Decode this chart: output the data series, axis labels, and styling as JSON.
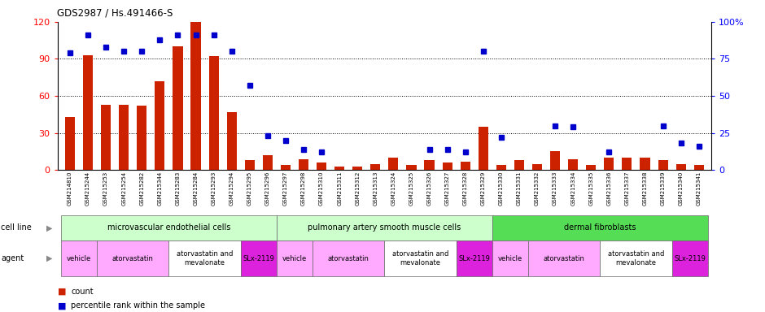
{
  "title": "GDS2987 / Hs.491466-S",
  "samples": [
    "GSM214810",
    "GSM215244",
    "GSM215253",
    "GSM215254",
    "GSM215282",
    "GSM215344",
    "GSM215283",
    "GSM215284",
    "GSM215293",
    "GSM215294",
    "GSM215295",
    "GSM215296",
    "GSM215297",
    "GSM215298",
    "GSM215310",
    "GSM215311",
    "GSM215312",
    "GSM215313",
    "GSM215324",
    "GSM215325",
    "GSM215326",
    "GSM215327",
    "GSM215328",
    "GSM215329",
    "GSM215330",
    "GSM215331",
    "GSM215332",
    "GSM215333",
    "GSM215334",
    "GSM215335",
    "GSM215336",
    "GSM215337",
    "GSM215338",
    "GSM215339",
    "GSM215340",
    "GSM215341"
  ],
  "counts": [
    43,
    93,
    53,
    53,
    52,
    72,
    100,
    120,
    92,
    47,
    8,
    12,
    4,
    9,
    6,
    3,
    3,
    5,
    10,
    4,
    8,
    6,
    7,
    35,
    4,
    8,
    5,
    15,
    9,
    4,
    10,
    10,
    10,
    8,
    5,
    4
  ],
  "percentiles": [
    79,
    91,
    83,
    80,
    80,
    88,
    91,
    91,
    91,
    80,
    57,
    23,
    20,
    14,
    12,
    null,
    null,
    null,
    null,
    null,
    14,
    14,
    12,
    80,
    22,
    null,
    null,
    30,
    29,
    null,
    12,
    null,
    null,
    30,
    18,
    16
  ],
  "bar_color": "#cc2200",
  "dot_color": "#0000cc",
  "ylim_left": [
    0,
    120
  ],
  "ylim_right": [
    0,
    100
  ],
  "yticks_left": [
    0,
    30,
    60,
    90,
    120
  ],
  "yticks_right": [
    0,
    25,
    50,
    75,
    100
  ],
  "cell_line_groups": [
    {
      "label": "microvascular endothelial cells",
      "start": 0,
      "end": 11,
      "color": "#ccffcc"
    },
    {
      "label": "pulmonary artery smooth muscle cells",
      "start": 12,
      "end": 23,
      "color": "#ccffcc"
    },
    {
      "label": "dermal fibroblasts",
      "start": 24,
      "end": 35,
      "color": "#66ee66"
    }
  ],
  "agent_groups": [
    {
      "label": "vehicle",
      "start": 0,
      "end": 1,
      "color": "#ffaaff"
    },
    {
      "label": "atorvastatin",
      "start": 2,
      "end": 5,
      "color": "#ffaaff"
    },
    {
      "label": "atorvastatin and\nmevalonate",
      "start": 6,
      "end": 9,
      "color": "#ffffff"
    },
    {
      "label": "SLx-2119",
      "start": 10,
      "end": 11,
      "color": "#ee44ee"
    },
    {
      "label": "vehicle",
      "start": 12,
      "end": 13,
      "color": "#ffaaff"
    },
    {
      "label": "atorvastatin",
      "start": 14,
      "end": 17,
      "color": "#ffaaff"
    },
    {
      "label": "atorvastatin and\nmevalonate",
      "start": 18,
      "end": 21,
      "color": "#ffffff"
    },
    {
      "label": "SLx-2119",
      "start": 22,
      "end": 23,
      "color": "#ee44ee"
    },
    {
      "label": "vehicle",
      "start": 24,
      "end": 25,
      "color": "#ffaaff"
    },
    {
      "label": "atorvastatin",
      "start": 26,
      "end": 29,
      "color": "#ffaaff"
    },
    {
      "label": "atorvastatin and\nmevalonate",
      "start": 30,
      "end": 33,
      "color": "#ffffff"
    },
    {
      "label": "SLx-2119",
      "start": 34,
      "end": 35,
      "color": "#ee44ee"
    }
  ]
}
